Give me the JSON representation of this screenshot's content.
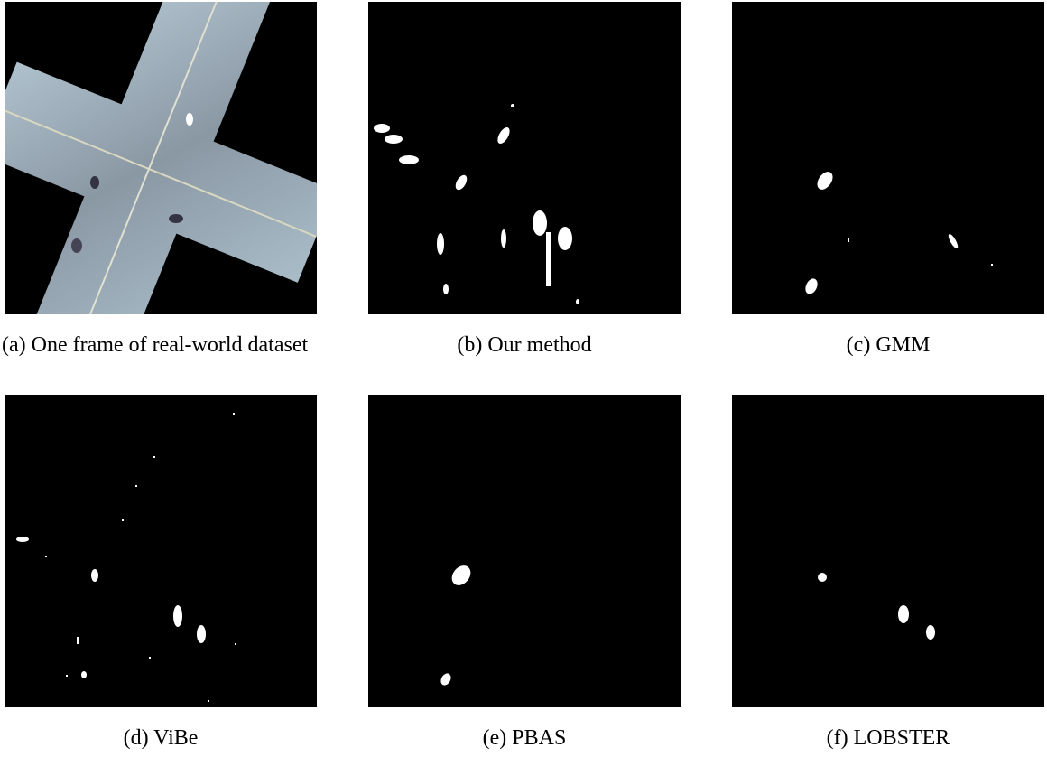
{
  "panels": [
    {
      "label": "(a)",
      "caption": "One frame of real-world dataset"
    },
    {
      "label": "(b)",
      "caption": "Our method"
    },
    {
      "label": "(c)",
      "caption": "GMM"
    },
    {
      "label": "(d)",
      "caption": "ViBe"
    },
    {
      "label": "(e)",
      "caption": "PBAS"
    },
    {
      "label": "(f)",
      "caption": "LOBSTER"
    }
  ]
}
